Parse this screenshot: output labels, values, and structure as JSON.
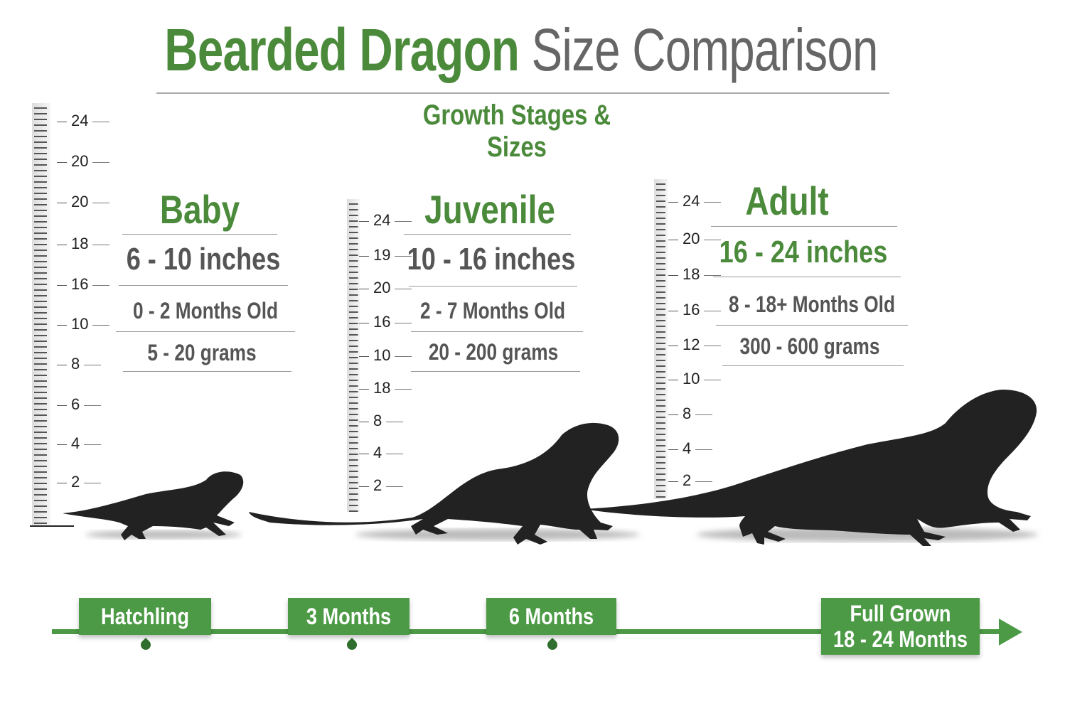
{
  "header": {
    "title_green": "Bearded Dragon",
    "title_gray": "Size Comparison",
    "subtitle": "Growth Stages & Sizes"
  },
  "stages": [
    {
      "title": "Baby",
      "inches": "6 - 10 inches",
      "age": "0 - 2 Months Old",
      "weight": "5 - 20 grams"
    },
    {
      "title": "Juvenile",
      "inches": "10 - 16 inches",
      "age": "2 - 7 Months Old",
      "weight": "20 - 200 grams"
    },
    {
      "title": "Adult",
      "inches": "16 - 24 inches",
      "age": "8 - 18+ Months Old",
      "weight": "300 - 600 grams"
    }
  ],
  "rulers": [
    {
      "labels": [
        "24",
        "20",
        "20",
        "18",
        "16",
        "10",
        "8",
        "6",
        "4",
        "2"
      ]
    },
    {
      "labels": [
        "24",
        "19",
        "20",
        "16",
        "10",
        "18",
        "8",
        "4",
        "2"
      ]
    },
    {
      "labels": [
        "24",
        "20",
        "18",
        "16",
        "12",
        "10",
        "8",
        "4",
        "2"
      ]
    }
  ],
  "timeline": {
    "milestones": [
      "Hatchling",
      "3 Months",
      "6 Months"
    ],
    "final_line1": "Full Grown",
    "final_line2": "18 - 24 Months"
  },
  "colors": {
    "green": "#4a8a3a",
    "timeline_green": "#4c9a45",
    "gray_text": "#555555",
    "silhouette": "#222222"
  }
}
